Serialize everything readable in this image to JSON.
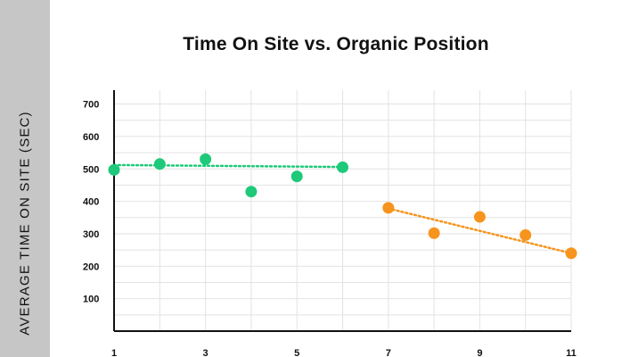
{
  "chart_data": {
    "type": "scatter",
    "title": "Time On Site vs. Organic Position",
    "ylabel": "AVERAGE TIME ON SITE (SEC)",
    "xlabel": "",
    "x_ticks": [
      1,
      3,
      5,
      7,
      9,
      11
    ],
    "y_ticks": [
      100,
      200,
      300,
      400,
      500,
      600,
      700
    ],
    "xlim": [
      1,
      11
    ],
    "ylim": [
      0,
      750
    ],
    "grid": true,
    "series": [
      {
        "color": "#1ec97a",
        "points": [
          {
            "x": 1,
            "y": 497
          },
          {
            "x": 2,
            "y": 515
          },
          {
            "x": 3,
            "y": 530
          },
          {
            "x": 4,
            "y": 430
          },
          {
            "x": 5,
            "y": 477
          },
          {
            "x": 6,
            "y": 505
          }
        ],
        "trend": {
          "x": [
            1,
            6
          ],
          "y": [
            512,
            506
          ]
        }
      },
      {
        "color": "#f7941d",
        "points": [
          {
            "x": 7,
            "y": 380
          },
          {
            "x": 8,
            "y": 302
          },
          {
            "x": 9,
            "y": 352
          },
          {
            "x": 10,
            "y": 296
          },
          {
            "x": 11,
            "y": 240
          }
        ],
        "trend": {
          "x": [
            7,
            11
          ],
          "y": [
            378,
            240
          ]
        }
      }
    ]
  }
}
